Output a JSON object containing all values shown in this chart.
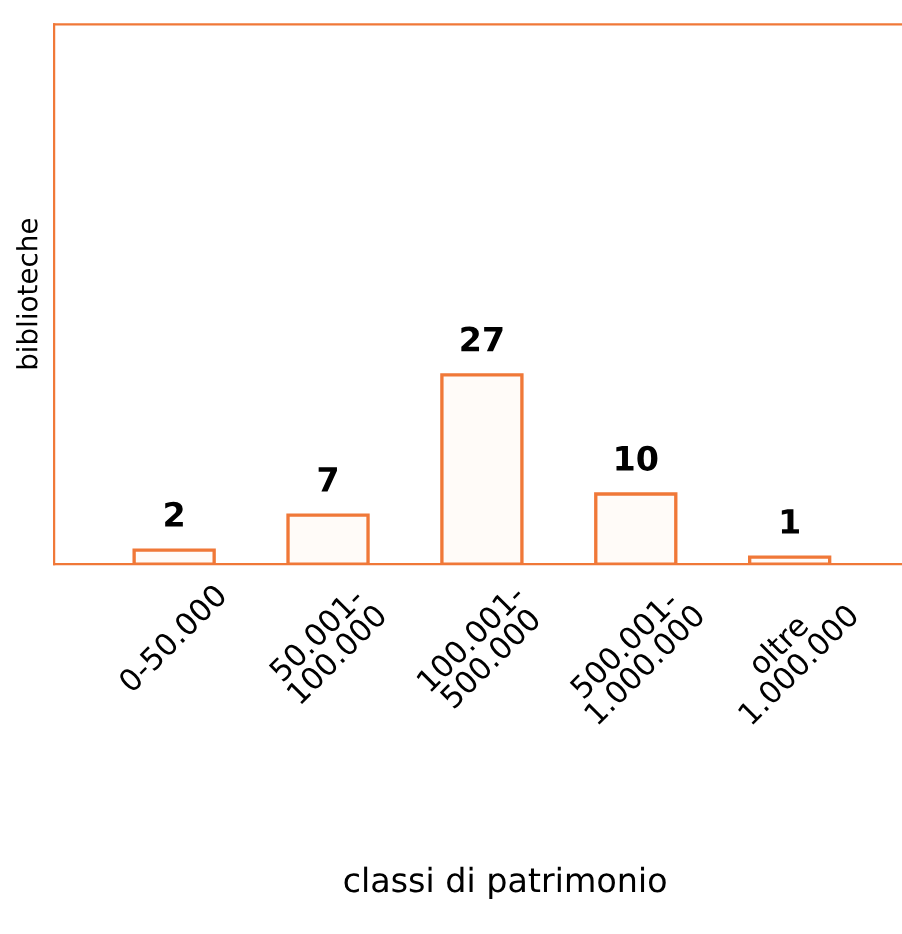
{
  "chart_data": {
    "type": "bar",
    "xlabel": "classi di patrimonio",
    "ylabel": "biblioteche",
    "categories": [
      "0-50.000",
      "50.001-\n100.000",
      "100.001-\n500.000",
      "500.001-\n1.000.000",
      "oltre\n1.000.000"
    ],
    "values": [
      2,
      7,
      27,
      10,
      1
    ],
    "color": "#f07838",
    "ylim": [
      0,
      77
    ],
    "data_labels": true,
    "tick_labels": "x",
    "grid": false,
    "legend": false
  }
}
